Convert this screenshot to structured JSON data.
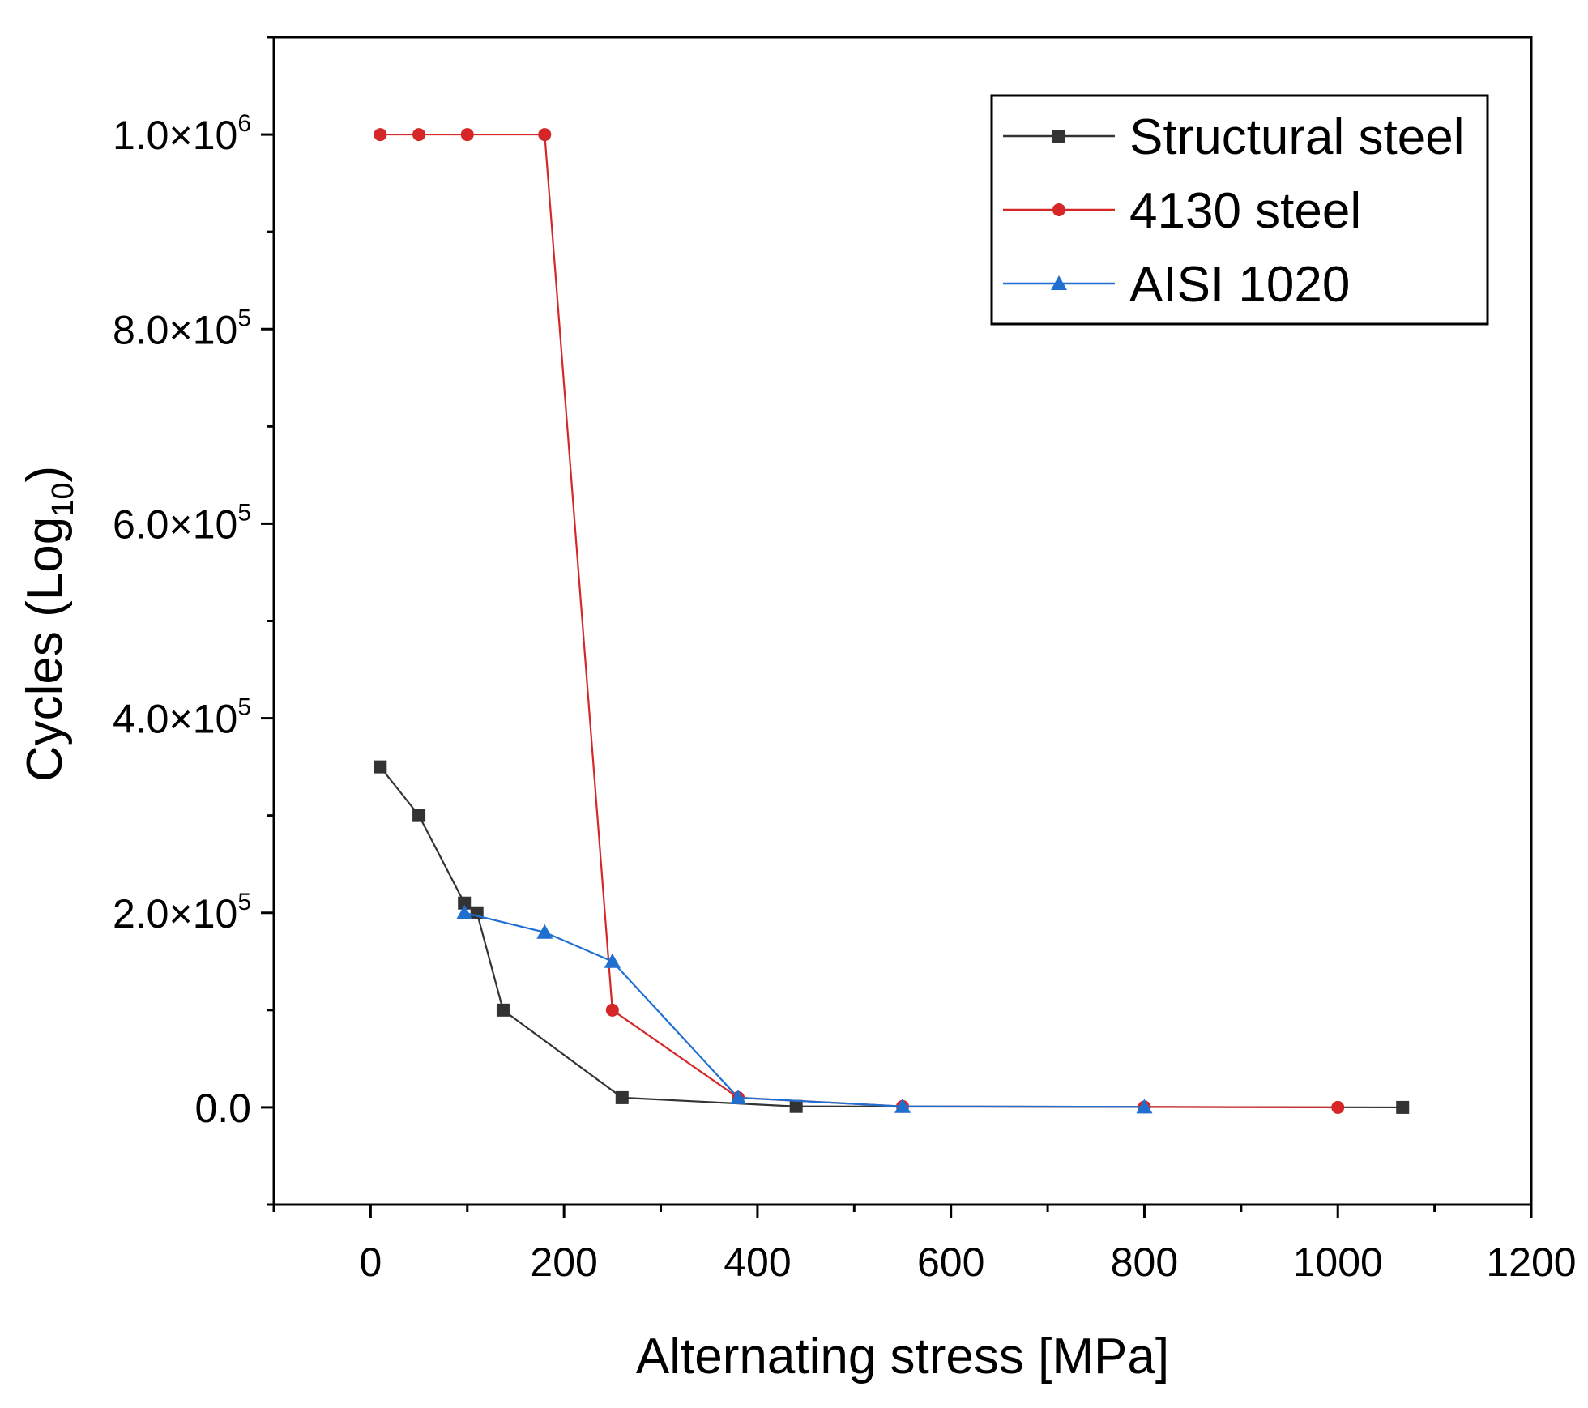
{
  "chart_data": {
    "type": "line",
    "title": "",
    "xlabel": "Alternating stress [MPa]",
    "ylabel": "Cycles (Log10)",
    "ylabel_parts": {
      "main": "Cycles (Log",
      "sub": "10",
      "close": ")"
    },
    "xlim": [
      -100,
      1200
    ],
    "ylim": [
      -100000,
      1100000
    ],
    "x_ticks": [
      0,
      200,
      400,
      600,
      800,
      1000,
      1200
    ],
    "x_tick_labels": [
      "0",
      "200",
      "400",
      "600",
      "800",
      "1000",
      "1200"
    ],
    "x_minor_ticks": [
      -100,
      100,
      300,
      500,
      700,
      900,
      1100
    ],
    "y_ticks": [
      0,
      200000,
      400000,
      600000,
      800000,
      1000000
    ],
    "y_tick_labels": [
      {
        "text": "0.0",
        "exp": ""
      },
      {
        "text": "2.0×10",
        "exp": "5"
      },
      {
        "text": "4.0×10",
        "exp": "5"
      },
      {
        "text": "6.0×10",
        "exp": "5"
      },
      {
        "text": "8.0×10",
        "exp": "5"
      },
      {
        "text": "1.0×10",
        "exp": "6"
      }
    ],
    "y_minor_ticks": [
      -100000,
      100000,
      300000,
      500000,
      700000,
      900000,
      1100000
    ],
    "grid": false,
    "legend_position": "top-right",
    "series": [
      {
        "name": "Structural steel",
        "color": "#333333",
        "marker": "square",
        "x": [
          10,
          50,
          97,
          110,
          137,
          260,
          440,
          1067
        ],
        "y": [
          350000,
          300000,
          210000,
          200000,
          100000,
          10000,
          1000,
          0
        ]
      },
      {
        "name": "4130 steel",
        "color": "#d62728",
        "marker": "circle",
        "x": [
          10,
          50,
          100,
          180,
          250,
          380,
          550,
          800,
          1000
        ],
        "y": [
          1000000,
          1000000,
          1000000,
          1000000,
          100000,
          10000,
          1000,
          500,
          0
        ]
      },
      {
        "name": "AISI 1020",
        "color": "#1f6fd1",
        "marker": "triangle",
        "x": [
          97,
          180,
          250,
          380,
          550,
          800
        ],
        "y": [
          200000,
          180000,
          150000,
          10000,
          1000,
          500
        ]
      }
    ]
  }
}
